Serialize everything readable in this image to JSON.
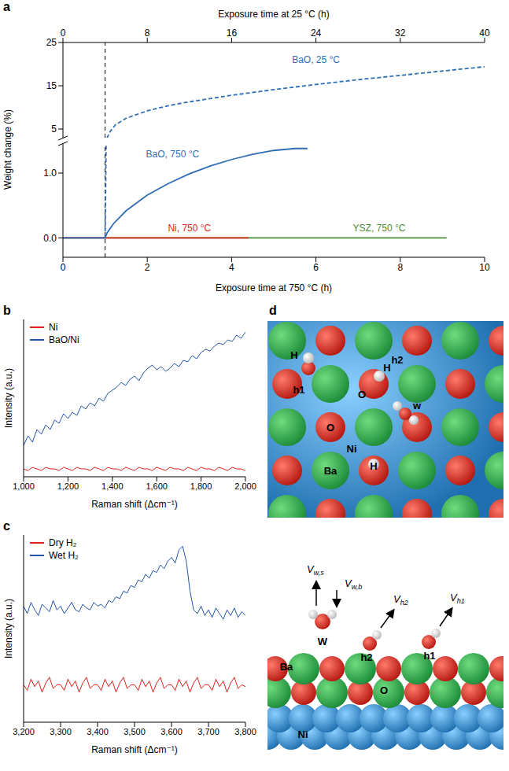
{
  "chart_data": [
    {
      "panel": "a",
      "type": "line",
      "xlabel": "Exposure time at 750 °C (h)",
      "x2label": "Exposure time at 25 °C (h)",
      "ylabel": "Weight change (%)",
      "xlim": [
        0,
        10
      ],
      "xticks": [
        0,
        2,
        4,
        6,
        8,
        10
      ],
      "x2lim": [
        0,
        40
      ],
      "x2ticks": [
        0,
        8,
        16,
        24,
        32,
        40
      ],
      "ylim_upper": [
        3,
        25
      ],
      "yticks_upper": [
        5,
        15,
        25
      ],
      "ylim_lower": [
        -0.3,
        1.45
      ],
      "yticks_lower": [
        {
          "value": 0,
          "label": "0.0"
        },
        {
          "value": 1,
          "label": "1.0"
        }
      ],
      "reference_x": 1,
      "series": [
        {
          "name": "BaO, 25 °C",
          "color": "#2f6db5",
          "line_style": "dashed",
          "axis": "x2",
          "x": [
            4,
            4.2,
            4.5,
            5,
            6,
            8,
            10,
            12,
            16,
            20,
            24,
            28,
            32,
            36,
            40
          ],
          "values": [
            0,
            3,
            4.5,
            6,
            7.5,
            9.2,
            10.4,
            11.3,
            12.8,
            14.1,
            15.3,
            16.4,
            17.4,
            18.4,
            19.4
          ]
        },
        {
          "name": "BaO, 750 °C",
          "color": "#2f6db5",
          "line_style": "solid",
          "x": [
            0,
            1,
            1.05,
            1.2,
            1.5,
            2,
            2.5,
            3,
            3.5,
            4,
            4.5,
            5,
            5.5,
            5.8
          ],
          "values": [
            0,
            0,
            0.08,
            0.22,
            0.42,
            0.66,
            0.84,
            0.99,
            1.11,
            1.21,
            1.29,
            1.35,
            1.38,
            1.38
          ]
        },
        {
          "name": "Ni, 750 °C",
          "color": "#e0261c",
          "line_style": "solid",
          "x": [
            0,
            4.4
          ],
          "values": [
            0,
            0
          ]
        },
        {
          "name": "YSZ, 750 °C",
          "color": "#4a8c3a",
          "line_style": "solid",
          "x": [
            0,
            9.1
          ],
          "values": [
            0,
            0
          ]
        }
      ]
    },
    {
      "panel": "b",
      "type": "line",
      "xlabel": "Raman shift (Δcm⁻¹)",
      "ylabel": "Intensity (a.u.)",
      "xlim": [
        1000,
        2000
      ],
      "xticks": [
        {
          "value": 1000,
          "label": "1,000"
        },
        {
          "value": 1200,
          "label": "1,200"
        },
        {
          "value": 1400,
          "label": "1,400"
        },
        {
          "value": 1600,
          "label": "1,600"
        },
        {
          "value": 1800,
          "label": "1,800"
        },
        {
          "value": 2000,
          "label": "2,000"
        }
      ],
      "ylim": [
        0,
        1
      ],
      "tick_labels": "x",
      "legend": "upper left",
      "x": [
        1000,
        1020,
        1040,
        1060,
        1080,
        1100,
        1120,
        1140,
        1160,
        1180,
        1200,
        1220,
        1240,
        1260,
        1280,
        1300,
        1320,
        1340,
        1360,
        1380,
        1400,
        1420,
        1440,
        1460,
        1480,
        1500,
        1520,
        1540,
        1560,
        1580,
        1600,
        1620,
        1640,
        1660,
        1680,
        1700,
        1720,
        1740,
        1760,
        1780,
        1800,
        1820,
        1840,
        1860,
        1880,
        1900,
        1920,
        1940,
        1960,
        1980,
        2000
      ],
      "series": [
        {
          "name": "Ni",
          "color": "#e0201b",
          "values": [
            0.05,
            0.04,
            0.06,
            0.05,
            0.04,
            0.06,
            0.05,
            0.05,
            0.04,
            0.06,
            0.05,
            0.04,
            0.06,
            0.05,
            0.05,
            0.04,
            0.06,
            0.05,
            0.04,
            0.06,
            0.05,
            0.05,
            0.04,
            0.06,
            0.05,
            0.04,
            0.06,
            0.05,
            0.05,
            0.04,
            0.06,
            0.05,
            0.04,
            0.06,
            0.05,
            0.05,
            0.04,
            0.06,
            0.05,
            0.04,
            0.06,
            0.05,
            0.05,
            0.04,
            0.06,
            0.05,
            0.04,
            0.06,
            0.05,
            0.05,
            0.04
          ]
        },
        {
          "name": "BaO/Ni",
          "color": "#2255aa",
          "values": [
            0.2,
            0.26,
            0.22,
            0.3,
            0.27,
            0.33,
            0.3,
            0.36,
            0.34,
            0.4,
            0.37,
            0.41,
            0.39,
            0.45,
            0.43,
            0.47,
            0.45,
            0.5,
            0.48,
            0.53,
            0.55,
            0.57,
            0.6,
            0.58,
            0.62,
            0.64,
            0.61,
            0.66,
            0.69,
            0.71,
            0.68,
            0.7,
            0.67,
            0.69,
            0.72,
            0.7,
            0.74,
            0.73,
            0.77,
            0.75,
            0.79,
            0.81,
            0.8,
            0.83,
            0.85,
            0.84,
            0.87,
            0.86,
            0.9,
            0.88,
            0.92
          ]
        }
      ]
    },
    {
      "panel": "c",
      "type": "line",
      "xlabel": "Raman shift (Δcm⁻¹)",
      "ylabel": "Intensity (a.u.)",
      "xlim": [
        3200,
        3800
      ],
      "xticks": [
        {
          "value": 3200,
          "label": "3,200"
        },
        {
          "value": 3300,
          "label": "3,300"
        },
        {
          "value": 3400,
          "label": "3,400"
        },
        {
          "value": 3500,
          "label": "3,500"
        },
        {
          "value": 3600,
          "label": "3,600"
        },
        {
          "value": 3700,
          "label": "3,700"
        },
        {
          "value": 3800,
          "label": "3,800"
        }
      ],
      "ylim": [
        0,
        1
      ],
      "tick_labels": "x",
      "legend": "upper left",
      "x": [
        3200,
        3210,
        3220,
        3230,
        3240,
        3250,
        3260,
        3270,
        3280,
        3290,
        3300,
        3310,
        3320,
        3330,
        3340,
        3350,
        3360,
        3370,
        3380,
        3390,
        3400,
        3410,
        3420,
        3430,
        3440,
        3450,
        3460,
        3470,
        3480,
        3490,
        3500,
        3510,
        3520,
        3530,
        3540,
        3550,
        3560,
        3570,
        3580,
        3590,
        3600,
        3610,
        3620,
        3630,
        3640,
        3650,
        3660,
        3670,
        3680,
        3690,
        3700,
        3710,
        3720,
        3730,
        3740,
        3750,
        3760,
        3770,
        3780,
        3790,
        3800
      ],
      "series": [
        {
          "name": "Dry H₂",
          "color": "#e0201b",
          "values": [
            0.2,
            0.17,
            0.23,
            0.19,
            0.22,
            0.16,
            0.21,
            0.24,
            0.18,
            0.2,
            0.2,
            0.17,
            0.23,
            0.19,
            0.22,
            0.16,
            0.21,
            0.24,
            0.18,
            0.2,
            0.2,
            0.17,
            0.23,
            0.19,
            0.22,
            0.16,
            0.21,
            0.24,
            0.18,
            0.2,
            0.2,
            0.17,
            0.23,
            0.19,
            0.22,
            0.16,
            0.21,
            0.24,
            0.18,
            0.2,
            0.2,
            0.17,
            0.23,
            0.19,
            0.22,
            0.16,
            0.21,
            0.24,
            0.18,
            0.2,
            0.2,
            0.17,
            0.23,
            0.19,
            0.22,
            0.16,
            0.21,
            0.24,
            0.18,
            0.2,
            0.19
          ]
        },
        {
          "name": "Wet H₂",
          "color": "#2255aa",
          "values": [
            0.62,
            0.58,
            0.64,
            0.6,
            0.57,
            0.63,
            0.61,
            0.59,
            0.65,
            0.6,
            0.62,
            0.58,
            0.61,
            0.64,
            0.6,
            0.59,
            0.63,
            0.61,
            0.6,
            0.64,
            0.62,
            0.63,
            0.61,
            0.65,
            0.64,
            0.67,
            0.66,
            0.7,
            0.69,
            0.73,
            0.72,
            0.76,
            0.75,
            0.79,
            0.77,
            0.81,
            0.8,
            0.84,
            0.82,
            0.86,
            0.88,
            0.85,
            0.92,
            0.94,
            0.86,
            0.7,
            0.6,
            0.58,
            0.62,
            0.57,
            0.6,
            0.56,
            0.61,
            0.58,
            0.55,
            0.6,
            0.57,
            0.61,
            0.56,
            0.59,
            0.57
          ]
        }
      ]
    }
  ],
  "diagram": {
    "panel": "d",
    "top_labels": [
      "H",
      "h1",
      "H",
      "O",
      "h2",
      "w",
      "O",
      "Ni",
      "Ba",
      "H"
    ],
    "bottom_labels": [
      "Ba",
      "W",
      "h2",
      "h1",
      "O",
      "Ni"
    ],
    "velocity_labels": [
      {
        "base": "V",
        "sub": "w,s"
      },
      {
        "base": "V",
        "sub": "w,b"
      },
      {
        "base": "V",
        "sub": "h2"
      },
      {
        "base": "V",
        "sub": "h1"
      }
    ]
  }
}
